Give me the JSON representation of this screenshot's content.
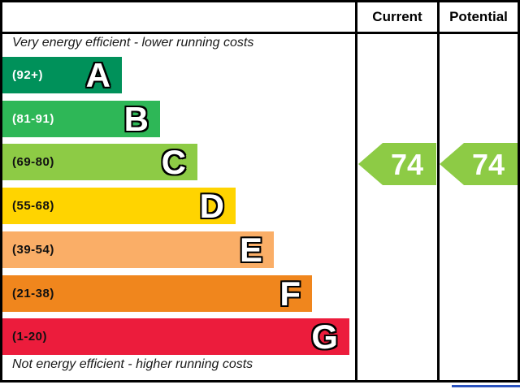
{
  "chart_data": {
    "type": "bar",
    "kind": "epc-energy-efficiency-rating",
    "columns": [
      "Current",
      "Potential"
    ],
    "top_caption": "Very energy efficient - lower running costs",
    "bottom_caption": "Not energy efficient - higher running costs",
    "bands": [
      {
        "letter": "A",
        "range_label": "(92+)",
        "range_min": 92,
        "range_max": 100,
        "color": "#00915a",
        "label_color": "#ffffff"
      },
      {
        "letter": "B",
        "range_label": "(81-91)",
        "range_min": 81,
        "range_max": 91,
        "color": "#2eb757",
        "label_color": "#ffffff"
      },
      {
        "letter": "C",
        "range_label": "(69-80)",
        "range_min": 69,
        "range_max": 80,
        "color": "#8dcb45",
        "label_color": "#111111"
      },
      {
        "letter": "D",
        "range_label": "(55-68)",
        "range_min": 55,
        "range_max": 68,
        "color": "#ffd400",
        "label_color": "#111111"
      },
      {
        "letter": "E",
        "range_label": "(39-54)",
        "range_min": 39,
        "range_max": 54,
        "color": "#faae67",
        "label_color": "#111111"
      },
      {
        "letter": "F",
        "range_label": "(21-38)",
        "range_min": 21,
        "range_max": 38,
        "color": "#f0861d",
        "label_color": "#111111"
      },
      {
        "letter": "G",
        "range_label": "(1-20)",
        "range_min": 1,
        "range_max": 20,
        "color": "#ec1c3c",
        "label_color": "#111111"
      }
    ],
    "current": {
      "value": "74",
      "band": "C",
      "arrow_color": "#8dcb45"
    },
    "potential": {
      "value": "74",
      "band": "C",
      "arrow_color": "#8dcb45"
    },
    "footer_rule_color": "#2a52be"
  }
}
